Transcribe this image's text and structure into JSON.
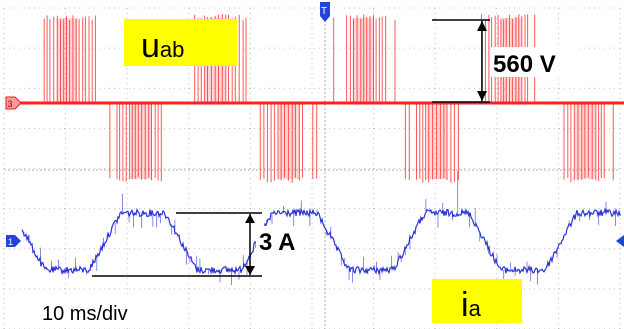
{
  "chart_data": {
    "type": "line",
    "title": "",
    "time_base": "10 ms/div",
    "series": [
      {
        "name": "u_ab",
        "label_main": "u",
        "label_sub": "ab",
        "color": "#ff2020",
        "channel_marker": "3",
        "annotation": "560 V",
        "peak_to_peak_value": 560,
        "unit": "V",
        "waveform": "PWM line-to-line voltage (bipolar pulse trains)"
      },
      {
        "name": "i_a",
        "label_main": "i",
        "label_sub": "a",
        "color": "#2a33d6",
        "channel_marker": "1",
        "annotation": "3 A",
        "peak_to_peak_value": 3,
        "unit": "A",
        "waveform": "trapezoidal phase current",
        "cycles_shown": 4
      }
    ],
    "trigger_marker": "T",
    "grid": true,
    "x_divisions": 10,
    "y_divisions": 8
  },
  "colors": {
    "voltage": "#ff2020",
    "current": "#2a33d6",
    "label_box": "#ffff00",
    "grid": "#b0b0b0"
  }
}
